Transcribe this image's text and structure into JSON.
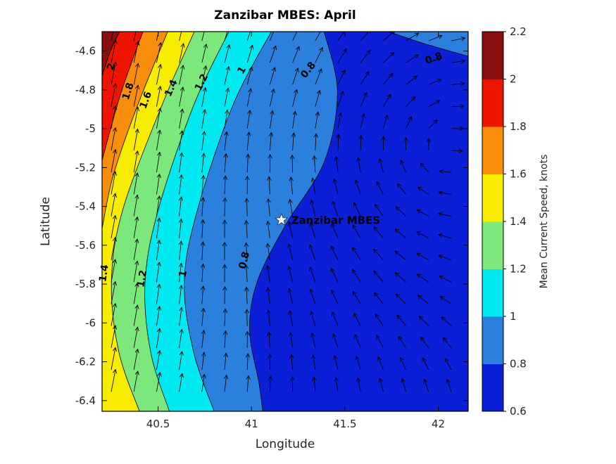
{
  "chart_data": {
    "type": "filled-contour-quiver",
    "title": "Zanzibar MBES: April",
    "xlabel": "Longitude",
    "ylabel": "Latitude",
    "xlim": [
      40.2,
      42.16
    ],
    "ylim": [
      -6.455,
      -4.5
    ],
    "xticks": {
      "values": [
        40.5,
        41,
        41.5,
        42
      ],
      "labels": [
        "40.5",
        "41",
        "41.5",
        "42"
      ]
    },
    "yticks": {
      "values": [
        -4.6,
        -4.8,
        -5,
        -5.2,
        -5.4,
        -5.6,
        -5.8,
        -6,
        -6.2,
        -6.4
      ],
      "labels": [
        "-4.6",
        "-4.8",
        "-5",
        "-5.2",
        "-5.4",
        "-5.6",
        "-5.8",
        "-6",
        "-6.2",
        "-6.4"
      ]
    },
    "grid": false,
    "legend": "none",
    "colorbar": {
      "label": "Mean Current Speed, knots",
      "min": 0.6,
      "max": 2.2,
      "ticks": [
        0.6,
        0.8,
        1,
        1.2,
        1.4,
        1.6,
        1.8,
        2,
        2.2
      ],
      "tick_labels": [
        "0.6",
        "0.8",
        "1",
        "1.2",
        "1.4",
        "1.6",
        "1.8",
        "2",
        "2.2"
      ],
      "position": "right"
    },
    "levels": [
      0.6,
      0.8,
      1,
      1.2,
      1.4,
      1.6,
      1.8,
      2,
      2.2
    ],
    "band_colors": [
      "#0a1fd6",
      "#2a80dc",
      "#00e8f0",
      "#7ce87c",
      "#f8ec00",
      "#f98e0c",
      "#ee1500",
      "#8a0f0f"
    ],
    "contour_lines": [
      {
        "level": 0.8,
        "closes": "bottom",
        "points": [
          [
            41.389,
            -4.5
          ],
          [
            41.46,
            -4.81
          ],
          [
            41.39,
            -5.17
          ],
          [
            41.18,
            -5.5
          ],
          [
            41.03,
            -5.79
          ],
          [
            40.99,
            -6.04
          ],
          [
            41.04,
            -6.31
          ],
          [
            41.06,
            -6.455
          ]
        ]
      },
      {
        "level": 1,
        "closes": "bottom",
        "points": [
          [
            41.106,
            -4.5
          ],
          [
            40.9,
            -4.88
          ],
          [
            40.71,
            -5.42
          ],
          [
            40.64,
            -5.79
          ],
          [
            40.69,
            -6.15
          ],
          [
            40.8,
            -6.455
          ]
        ]
      },
      {
        "level": 1.2,
        "closes": "bottom",
        "points": [
          [
            40.879,
            -4.5
          ],
          [
            40.69,
            -4.88
          ],
          [
            40.5,
            -5.42
          ],
          [
            40.43,
            -5.79
          ],
          [
            40.46,
            -6.15
          ],
          [
            40.56,
            -6.455
          ]
        ]
      },
      {
        "level": 1.4,
        "closes": "bottom",
        "points": [
          [
            40.694,
            -4.5
          ],
          [
            40.52,
            -4.88
          ],
          [
            40.31,
            -5.42
          ],
          [
            40.25,
            -5.79
          ],
          [
            40.29,
            -6.15
          ],
          [
            40.4,
            -6.455
          ]
        ]
      },
      {
        "level": 1.6,
        "closes": "left",
        "points": [
          [
            40.551,
            -4.5
          ],
          [
            40.39,
            -4.88
          ],
          [
            40.26,
            -5.24
          ],
          [
            40.2,
            -5.514
          ]
        ]
      },
      {
        "level": 1.8,
        "closes": "left",
        "points": [
          [
            40.419,
            -4.5
          ],
          [
            40.3,
            -4.82
          ],
          [
            40.2,
            -5.163
          ]
        ]
      },
      {
        "level": 2,
        "closes": "left",
        "points": [
          [
            40.294,
            -4.5
          ],
          [
            40.245,
            -4.6
          ],
          [
            40.2,
            -4.728
          ]
        ]
      },
      {
        "level": 0.8,
        "closes": "top-right",
        "points": [
          [
            41.736,
            -4.5
          ],
          [
            41.92,
            -4.56
          ],
          [
            42.16,
            -4.627
          ]
        ]
      }
    ],
    "contour_labels": [
      {
        "text": "2",
        "lon": 40.264,
        "lat": -4.685,
        "rot": -72
      },
      {
        "text": "1.8",
        "lon": 40.355,
        "lat": -4.812,
        "rot": -72
      },
      {
        "text": "1.6",
        "lon": 40.449,
        "lat": -4.858,
        "rot": -70
      },
      {
        "text": "1.4",
        "lon": 40.585,
        "lat": -4.797,
        "rot": -66
      },
      {
        "text": "1.2",
        "lon": 40.747,
        "lat": -4.768,
        "rot": -64
      },
      {
        "text": "1",
        "lon": 40.962,
        "lat": -4.707,
        "rot": -60
      },
      {
        "text": "0.8",
        "lon": 41.317,
        "lat": -4.707,
        "rot": -52
      },
      {
        "text": "0.8",
        "lon": 41.981,
        "lat": -4.652,
        "rot": -20
      },
      {
        "text": "1.4",
        "lon": 40.226,
        "lat": -5.746,
        "rot": -82
      },
      {
        "text": "1.2",
        "lon": 40.43,
        "lat": -5.775,
        "rot": -80
      },
      {
        "text": "1",
        "lon": 40.649,
        "lat": -5.75,
        "rot": -78
      },
      {
        "text": "0.8",
        "lon": 40.977,
        "lat": -5.681,
        "rot": -76
      }
    ],
    "station": {
      "label": "Zanzibar MBES",
      "lon": 41.16,
      "lat": -5.47,
      "marker": "white-star"
    },
    "quiver": {
      "cols": 16,
      "rows": 17,
      "color": "#000000",
      "pattern": "strong northward flow in west decaying eastward, clockwise gyre in east",
      "gyre_center": [
        41.75,
        -5.05
      ]
    }
  }
}
